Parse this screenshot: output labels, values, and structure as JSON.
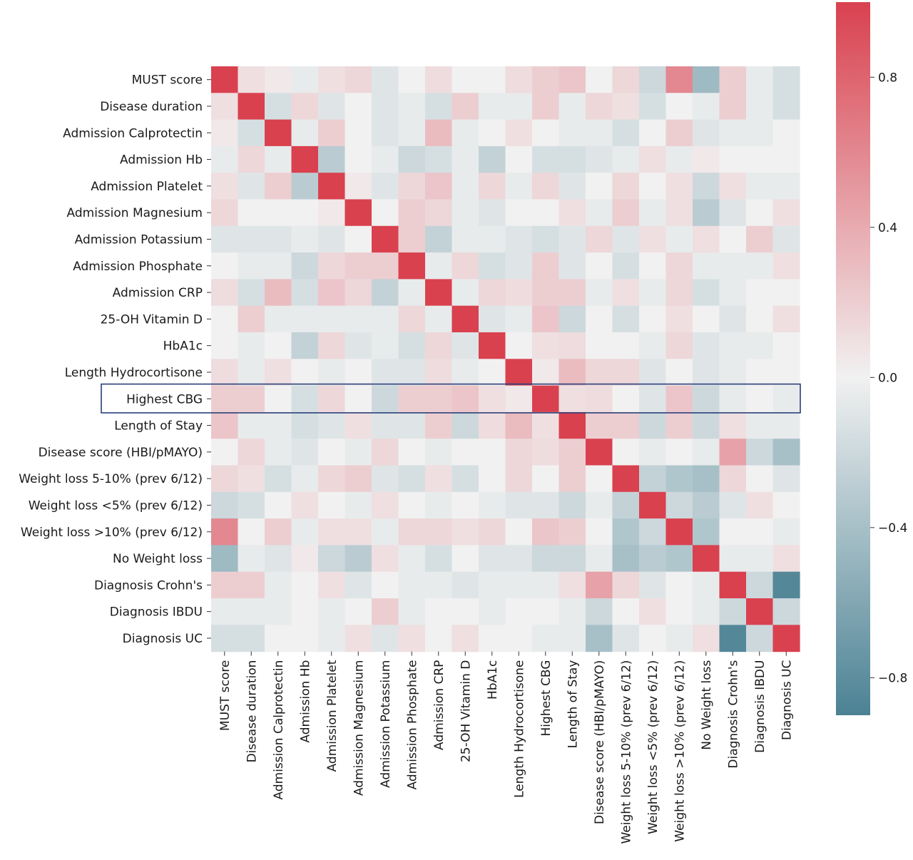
{
  "chart_data": {
    "type": "heatmap",
    "title": "",
    "xlabel": "",
    "ylabel": "",
    "labels": [
      "MUST score",
      "Disease duration",
      "Admission Calprotectin",
      "Admission Hb",
      "Admission Platelet",
      "Admission Magnesium",
      "Admission Potassium",
      "Admission Phosphate",
      "Admission CRP",
      "25-OH Vitamin D",
      "HbA1c",
      "Length Hydrocortisone",
      "Highest CBG",
      "Length of Stay",
      "Disease score (HBI/pMAYO)",
      "Weight loss 5-10% (prev 6/12)",
      "Weight loss <5% (prev 6/12)",
      "Weight loss >10% (prev 6/12)",
      "No Weight loss",
      "Diagnosis Crohn's",
      "Diagnosis IBDU",
      "Diagnosis UC"
    ],
    "values": [
      [
        1.0,
        0.1,
        0.05,
        -0.05,
        0.1,
        0.15,
        -0.1,
        0.0,
        0.12,
        0.0,
        0.0,
        0.12,
        0.2,
        0.25,
        0.0,
        0.15,
        -0.2,
        0.6,
        -0.45,
        0.2,
        -0.05,
        -0.15
      ],
      [
        0.1,
        1.0,
        -0.15,
        0.15,
        -0.1,
        0.0,
        -0.1,
        -0.05,
        -0.15,
        0.2,
        -0.05,
        -0.05,
        0.2,
        -0.05,
        0.15,
        0.1,
        -0.15,
        0.0,
        -0.05,
        0.2,
        -0.05,
        -0.15
      ],
      [
        0.05,
        -0.15,
        1.0,
        -0.05,
        0.2,
        0.0,
        -0.1,
        -0.05,
        0.3,
        -0.05,
        0.0,
        0.1,
        0.0,
        -0.05,
        -0.05,
        -0.15,
        0.0,
        0.2,
        -0.1,
        -0.05,
        -0.05,
        0.0
      ],
      [
        -0.05,
        0.15,
        -0.05,
        1.0,
        -0.3,
        0.0,
        -0.05,
        -0.2,
        -0.15,
        -0.05,
        -0.25,
        0.0,
        -0.15,
        -0.15,
        -0.1,
        -0.05,
        0.1,
        -0.05,
        0.05,
        0.0,
        0.0,
        0.0
      ],
      [
        0.1,
        -0.1,
        0.2,
        -0.3,
        1.0,
        0.05,
        -0.1,
        0.15,
        0.25,
        -0.05,
        0.15,
        -0.05,
        0.15,
        -0.1,
        0.0,
        0.15,
        0.0,
        0.1,
        -0.2,
        0.1,
        -0.05,
        -0.05
      ],
      [
        0.15,
        0.0,
        0.0,
        0.0,
        0.05,
        1.0,
        0.0,
        0.2,
        0.15,
        -0.05,
        -0.1,
        0.0,
        0.0,
        0.1,
        -0.05,
        0.2,
        -0.05,
        0.1,
        -0.3,
        -0.1,
        0.0,
        0.1
      ],
      [
        -0.1,
        -0.1,
        -0.1,
        -0.05,
        -0.1,
        0.0,
        1.0,
        0.2,
        -0.25,
        -0.05,
        -0.05,
        -0.1,
        -0.15,
        -0.1,
        0.15,
        -0.1,
        0.1,
        -0.05,
        0.1,
        0.0,
        0.2,
        -0.1
      ],
      [
        0.0,
        -0.05,
        -0.05,
        -0.2,
        0.15,
        0.2,
        0.2,
        1.0,
        -0.05,
        0.15,
        -0.15,
        -0.1,
        0.2,
        -0.1,
        0.0,
        -0.15,
        0.0,
        0.15,
        -0.05,
        -0.05,
        -0.05,
        0.1
      ],
      [
        0.12,
        -0.15,
        0.3,
        -0.15,
        0.25,
        0.15,
        -0.25,
        -0.05,
        1.0,
        -0.05,
        0.15,
        0.12,
        0.2,
        0.2,
        -0.05,
        0.1,
        -0.05,
        0.15,
        -0.15,
        -0.05,
        0.0,
        0.0
      ],
      [
        0.0,
        0.2,
        -0.05,
        -0.05,
        -0.05,
        -0.05,
        -0.05,
        0.15,
        -0.05,
        1.0,
        -0.1,
        -0.05,
        0.25,
        -0.2,
        0.0,
        -0.15,
        0.0,
        0.1,
        0.0,
        -0.1,
        0.0,
        0.1
      ],
      [
        0.0,
        -0.05,
        0.0,
        -0.25,
        0.15,
        -0.1,
        -0.05,
        -0.15,
        0.15,
        -0.1,
        1.0,
        0.0,
        0.1,
        0.12,
        0.0,
        0.0,
        -0.05,
        0.15,
        -0.1,
        -0.05,
        -0.05,
        0.0
      ],
      [
        0.12,
        -0.05,
        0.1,
        0.0,
        -0.05,
        0.0,
        -0.1,
        -0.1,
        0.12,
        -0.05,
        0.0,
        1.0,
        0.05,
        0.3,
        0.15,
        0.15,
        -0.1,
        0.0,
        -0.1,
        -0.05,
        0.0,
        0.0
      ],
      [
        0.2,
        0.2,
        0.0,
        -0.15,
        0.15,
        0.0,
        -0.2,
        0.2,
        0.2,
        0.25,
        0.1,
        0.05,
        1.0,
        0.1,
        0.12,
        0.0,
        -0.1,
        0.25,
        -0.2,
        -0.05,
        0.0,
        -0.05
      ],
      [
        0.25,
        -0.05,
        -0.05,
        -0.15,
        -0.1,
        0.1,
        -0.1,
        -0.1,
        0.2,
        -0.2,
        0.12,
        0.3,
        0.1,
        1.0,
        0.2,
        0.2,
        -0.2,
        0.2,
        -0.2,
        0.1,
        -0.05,
        -0.05
      ],
      [
        0.0,
        0.15,
        -0.05,
        -0.1,
        0.0,
        -0.05,
        0.15,
        0.0,
        -0.05,
        0.0,
        0.0,
        0.15,
        0.12,
        0.2,
        1.0,
        0.0,
        -0.05,
        0.0,
        -0.05,
        0.45,
        -0.2,
        -0.4
      ],
      [
        0.15,
        0.1,
        -0.15,
        -0.05,
        0.15,
        0.2,
        -0.1,
        -0.15,
        0.1,
        -0.15,
        0.0,
        0.15,
        0.0,
        0.2,
        0.0,
        1.0,
        -0.25,
        -0.35,
        -0.4,
        0.15,
        0.0,
        -0.1
      ],
      [
        -0.2,
        -0.15,
        0.0,
        0.1,
        0.0,
        -0.05,
        0.1,
        0.0,
        -0.05,
        0.0,
        -0.05,
        -0.1,
        -0.1,
        -0.2,
        -0.05,
        -0.25,
        1.0,
        -0.2,
        -0.3,
        -0.1,
        0.1,
        0.0
      ],
      [
        0.6,
        0.0,
        0.2,
        -0.05,
        0.1,
        0.1,
        -0.05,
        0.15,
        0.15,
        0.1,
        0.15,
        0.0,
        0.25,
        0.2,
        0.0,
        -0.35,
        -0.2,
        1.0,
        -0.35,
        0.0,
        0.0,
        -0.05
      ],
      [
        -0.45,
        -0.05,
        -0.1,
        0.05,
        -0.2,
        -0.3,
        0.1,
        -0.05,
        -0.15,
        0.0,
        -0.1,
        -0.1,
        -0.2,
        -0.2,
        -0.05,
        -0.4,
        -0.3,
        -0.35,
        1.0,
        -0.05,
        -0.05,
        0.1
      ],
      [
        0.2,
        0.2,
        -0.05,
        0.0,
        0.1,
        -0.1,
        0.0,
        -0.05,
        -0.05,
        -0.1,
        -0.05,
        -0.05,
        -0.05,
        0.1,
        0.45,
        0.15,
        -0.1,
        0.0,
        -0.05,
        1.0,
        -0.2,
        -0.85
      ],
      [
        -0.05,
        -0.05,
        -0.05,
        0.0,
        -0.05,
        0.0,
        0.2,
        -0.05,
        0.0,
        0.0,
        -0.05,
        0.0,
        0.0,
        -0.05,
        -0.2,
        0.0,
        0.1,
        0.0,
        -0.05,
        -0.2,
        1.0,
        -0.2
      ],
      [
        -0.15,
        -0.15,
        0.0,
        0.0,
        -0.05,
        0.1,
        -0.1,
        0.1,
        0.0,
        0.1,
        0.0,
        0.0,
        -0.05,
        -0.05,
        -0.4,
        -0.1,
        0.0,
        -0.05,
        0.1,
        -0.85,
        -0.2,
        1.0
      ]
    ],
    "colorbar": {
      "min": -0.9,
      "max": 1.0,
      "ticks": [
        0.8,
        0.4,
        0.0,
        -0.4,
        -0.8
      ],
      "tick_labels": [
        "0.8",
        "0.4",
        "0.0",
        "−0.4",
        "−0.8"
      ]
    },
    "colors": {
      "negative": "#4b8294",
      "neutral": "#f1f1f1",
      "positive": "#d9414f"
    },
    "highlight": {
      "row": "Highest CBG",
      "border_color": "#2a3f7a"
    },
    "grid": false,
    "legend": "right"
  }
}
